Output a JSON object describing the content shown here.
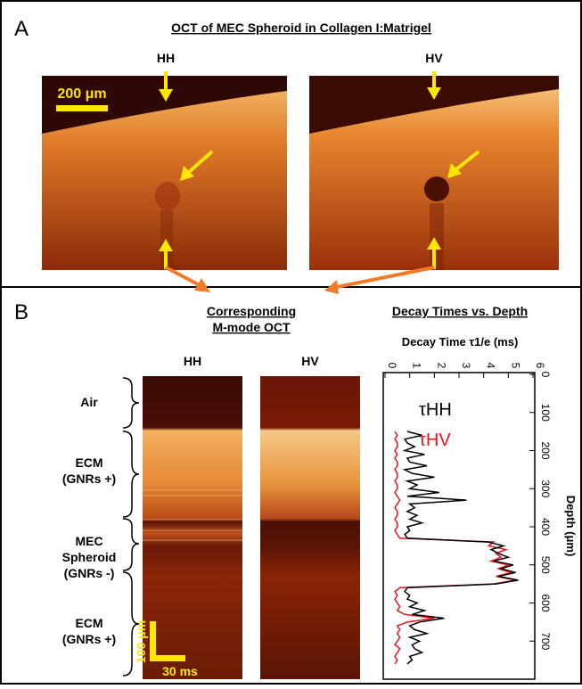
{
  "panel_a": {
    "label": "A",
    "title": "OCT of MEC Spheroid in Collagen I:Matrigel",
    "left_label": "HH",
    "right_label": "HV",
    "scale_label": "200 μm"
  },
  "panel_b": {
    "label": "B",
    "mmode_title_1": "Corresponding",
    "mmode_title_2": "M-mode OCT",
    "left_label": "HH",
    "right_label": "HV",
    "regions": [
      "Air",
      "ECM",
      "(GNRs +)",
      "MEC",
      "Spheroid",
      "(GNRs -)",
      "ECM",
      "(GNRs +)"
    ],
    "scale_depth": "100 μm",
    "scale_time": "30 ms"
  },
  "chart_data": {
    "type": "line",
    "title": "Decay Times vs. Depth",
    "ylabel": "Decay Time τ1/e (ms)",
    "xlabel": "Depth (μm)",
    "x": [
      150,
      160,
      170,
      180,
      190,
      200,
      210,
      220,
      230,
      240,
      250,
      260,
      270,
      280,
      290,
      300,
      310,
      320,
      330,
      340,
      350,
      360,
      370,
      380,
      390,
      400,
      410,
      420,
      430,
      440,
      450,
      460,
      470,
      480,
      490,
      500,
      510,
      520,
      530,
      540,
      550,
      560,
      570,
      580,
      590,
      600,
      610,
      620,
      630,
      640,
      650,
      660,
      670,
      680,
      690,
      700,
      710,
      720,
      730,
      740,
      750,
      760
    ],
    "series": [
      {
        "name": "τHH",
        "color": "#000000",
        "values": [
          0.9,
          1.5,
          0.8,
          0.9,
          1.2,
          0.8,
          1.6,
          0.9,
          1.0,
          1.7,
          0.8,
          1.1,
          2.0,
          0.9,
          1.3,
          1.0,
          2.2,
          0.9,
          3.3,
          1.0,
          1.2,
          0.9,
          1.3,
          1.0,
          1.5,
          0.9,
          1.0,
          0.8,
          0.9,
          4.2,
          4.8,
          4.3,
          4.6,
          5.0,
          4.4,
          5.2,
          4.7,
          5.3,
          4.6,
          5.4,
          4.5,
          0.9,
          0.8,
          1.0,
          0.9,
          1.3,
          1.0,
          1.6,
          1.1,
          2.4,
          1.4,
          1.0,
          1.2,
          1.7,
          1.0,
          1.4,
          1.1,
          1.2,
          1.5,
          1.0,
          1.1,
          0.9
        ]
      },
      {
        "name": "τHV",
        "color": "#e8141c",
        "values": [
          0.4,
          0.5,
          0.4,
          0.5,
          0.5,
          0.4,
          0.5,
          0.4,
          0.5,
          0.5,
          0.4,
          0.5,
          0.5,
          0.4,
          0.5,
          0.5,
          0.4,
          0.5,
          0.6,
          0.5,
          0.4,
          0.5,
          0.5,
          0.4,
          0.5,
          0.5,
          0.4,
          0.5,
          0.6,
          4.4,
          4.2,
          4.9,
          4.5,
          4.7,
          4.3,
          5.0,
          4.6,
          5.1,
          4.5,
          5.3,
          4.4,
          0.6,
          0.4,
          0.5,
          0.4,
          0.5,
          0.6,
          0.5,
          0.8,
          2.0,
          0.9,
          0.5,
          0.6,
          0.5,
          0.6,
          0.5,
          0.4,
          0.6,
          0.5,
          0.4,
          0.5,
          0.4
        ]
      }
    ],
    "xlim": [
      0,
      800
    ],
    "xticks": [
      0,
      100,
      200,
      300,
      400,
      500,
      600,
      700
    ],
    "ylim": [
      0,
      6
    ],
    "yticks": [
      0,
      1,
      2,
      3,
      4,
      5,
      6
    ]
  }
}
